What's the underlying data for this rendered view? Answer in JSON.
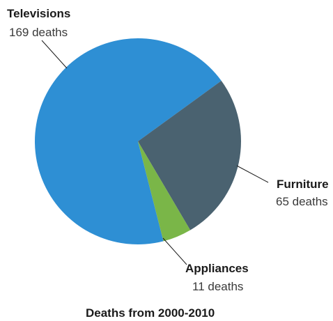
{
  "chart_data": {
    "type": "pie",
    "title": "Deaths from 2000-2010",
    "slices": [
      {
        "name": "Televisions",
        "value": 169,
        "value_label": "169 deaths",
        "color": "#2e8fd4"
      },
      {
        "name": "Furniture",
        "value": 65,
        "value_label": "65 deaths",
        "color": "#4a6270"
      },
      {
        "name": "Appliances",
        "value": 11,
        "value_label": "11 deaths",
        "color": "#7ab648"
      }
    ]
  }
}
